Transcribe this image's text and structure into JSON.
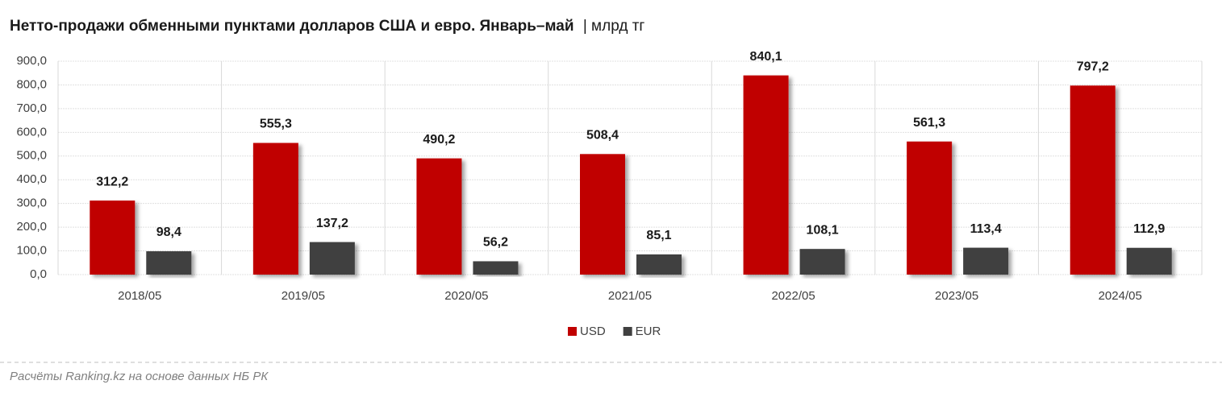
{
  "chart_data": {
    "type": "bar",
    "title": "Нетто-продажи обменными пунктами долларов США и евро. Январь–май",
    "subtitle": "| млрд тг",
    "categories": [
      "2018/05",
      "2019/05",
      "2020/05",
      "2021/05",
      "2022/05",
      "2023/05",
      "2024/05"
    ],
    "series": [
      {
        "name": "USD",
        "color": "#c00000",
        "values": [
          312.2,
          555.3,
          490.2,
          508.4,
          840.1,
          561.3,
          797.2
        ],
        "value_labels": [
          "312,2",
          "555,3",
          "490,2",
          "508,4",
          "840,1",
          "561,3",
          "797,2"
        ]
      },
      {
        "name": "EUR",
        "color": "#404040",
        "values": [
          98.4,
          137.2,
          56.2,
          85.1,
          108.1,
          113.4,
          112.9
        ],
        "value_labels": [
          "98,4",
          "137,2",
          "56,2",
          "85,1",
          "108,1",
          "113,4",
          "112,9"
        ]
      }
    ],
    "ylim": [
      0,
      900
    ],
    "yticks": [
      {
        "value": 0,
        "label": "0,0"
      },
      {
        "value": 100,
        "label": "100,0"
      },
      {
        "value": 200,
        "label": "200,0"
      },
      {
        "value": 300,
        "label": "300,0"
      },
      {
        "value": 400,
        "label": "400,0"
      },
      {
        "value": 500,
        "label": "500,0"
      },
      {
        "value": 600,
        "label": "600,0"
      },
      {
        "value": 700,
        "label": "700,0"
      },
      {
        "value": 800,
        "label": "800,0"
      },
      {
        "value": 900,
        "label": "900,0"
      }
    ],
    "grid": true,
    "legend": "bottom",
    "source": "Расчёты Ranking.kz на основе данных НБ РК"
  }
}
